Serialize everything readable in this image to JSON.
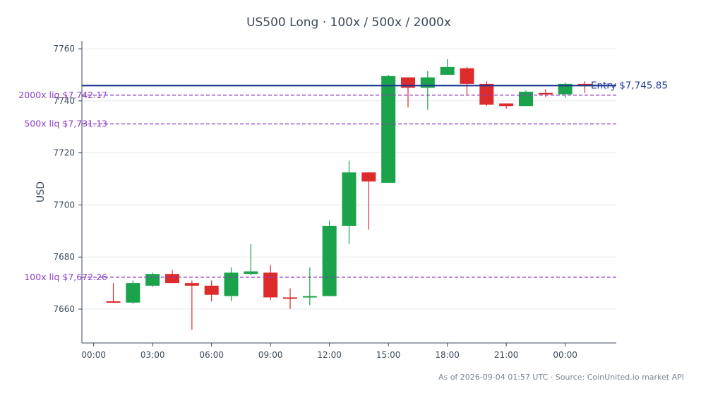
{
  "chart_data": {
    "type": "candlestick",
    "title": "US500 Long · 100x / 500x / 2000x",
    "ylabel": "USD",
    "ylim": [
      7647,
      7763
    ],
    "yticks": [
      7660,
      7680,
      7700,
      7720,
      7740,
      7760
    ],
    "x_tick_labels": [
      "00:00",
      "03:00",
      "06:00",
      "09:00",
      "12:00",
      "15:00",
      "18:00",
      "21:00",
      "00:00"
    ],
    "x_tick_hours": [
      0,
      3,
      6,
      9,
      12,
      15,
      18,
      21,
      24
    ],
    "xlim_hours": [
      -0.6,
      26.6
    ],
    "candles": [
      {
        "t": 1,
        "o": 7663.0,
        "h": 7670.0,
        "l": 7662.5,
        "c": 7662.5
      },
      {
        "t": 2,
        "o": 7662.5,
        "h": 7671.0,
        "l": 7662.0,
        "c": 7670.0
      },
      {
        "t": 3,
        "o": 7669.0,
        "h": 7674.0,
        "l": 7668.5,
        "c": 7673.5
      },
      {
        "t": 4,
        "o": 7673.5,
        "h": 7675.0,
        "l": 7670.0,
        "c": 7670.0
      },
      {
        "t": 5,
        "o": 7670.0,
        "h": 7671.0,
        "l": 7652.0,
        "c": 7669.0
      },
      {
        "t": 6,
        "o": 7669.0,
        "h": 7671.0,
        "l": 7663.0,
        "c": 7665.5
      },
      {
        "t": 7,
        "o": 7665.0,
        "h": 7676.0,
        "l": 7663.0,
        "c": 7674.0
      },
      {
        "t": 8,
        "o": 7673.5,
        "h": 7685.0,
        "l": 7673.0,
        "c": 7674.5
      },
      {
        "t": 9,
        "o": 7674.0,
        "h": 7677.0,
        "l": 7663.5,
        "c": 7664.5
      },
      {
        "t": 10,
        "o": 7664.5,
        "h": 7668.0,
        "l": 7660.0,
        "c": 7664.0
      },
      {
        "t": 11,
        "o": 7664.5,
        "h": 7676.0,
        "l": 7661.5,
        "c": 7665.0
      },
      {
        "t": 12,
        "o": 7665.0,
        "h": 7694.0,
        "l": 7665.0,
        "c": 7692.0
      },
      {
        "t": 13,
        "o": 7692.0,
        "h": 7717.0,
        "l": 7685.0,
        "c": 7712.5
      },
      {
        "t": 14,
        "o": 7712.5,
        "h": 7712.5,
        "l": 7690.5,
        "c": 7709.0
      },
      {
        "t": 15,
        "o": 7708.5,
        "h": 7750.0,
        "l": 7708.5,
        "c": 7749.5
      },
      {
        "t": 16,
        "o": 7749.0,
        "h": 7749.0,
        "l": 7737.5,
        "c": 7745.0
      },
      {
        "t": 17,
        "o": 7745.0,
        "h": 7751.5,
        "l": 7736.5,
        "c": 7749.0
      },
      {
        "t": 18,
        "o": 7750.0,
        "h": 7756.0,
        "l": 7750.0,
        "c": 7753.0
      },
      {
        "t": 19,
        "o": 7752.5,
        "h": 7753.0,
        "l": 7742.0,
        "c": 7746.5
      },
      {
        "t": 20,
        "o": 7746.5,
        "h": 7747.5,
        "l": 7738.0,
        "c": 7738.5
      },
      {
        "t": 21,
        "o": 7739.0,
        "h": 7739.0,
        "l": 7737.0,
        "c": 7738.0
      },
      {
        "t": 22,
        "o": 7738.0,
        "h": 7744.0,
        "l": 7738.0,
        "c": 7743.5
      },
      {
        "t": 23,
        "o": 7743.0,
        "h": 7744.5,
        "l": 7741.5,
        "c": 7742.5
      },
      {
        "t": 24,
        "o": 7742.5,
        "h": 7747.0,
        "l": 7741.0,
        "c": 7746.5
      },
      {
        "t": 25,
        "o": 7746.5,
        "h": 7747.5,
        "l": 7743.0,
        "c": 7746.0
      }
    ],
    "reference_lines": [
      {
        "label": "Entry $7,745.85",
        "value": 7745.85,
        "style": "solid",
        "color": "#1f3a93"
      },
      {
        "label": "2000x liq $7,742.17",
        "value": 7742.17,
        "style": "dashed",
        "color": "#8b3fc5"
      },
      {
        "label": "500x liq $7,731.13",
        "value": 7731.13,
        "style": "dashed",
        "color": "#8b3fc5"
      },
      {
        "label": "100x liq $7,672.26",
        "value": 7672.26,
        "style": "dashed",
        "color": "#8b3fc5"
      }
    ],
    "up_color": "#1aa34a",
    "down_color": "#dd2a2a",
    "grid": true,
    "footer": "As of 2026-09-04 01:57 UTC · Source: CoinUnited.io market API"
  }
}
